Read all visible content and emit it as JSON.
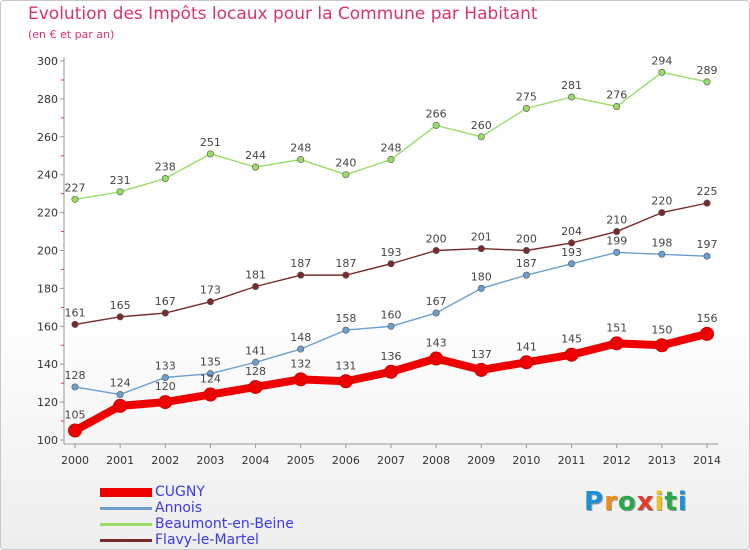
{
  "title": "Evolution des Impôts locaux pour la Commune par Habitant",
  "subtitle": "(en € et par an)",
  "chart_data": {
    "type": "line",
    "title": "Evolution des Impôts locaux pour la Commune par Habitant",
    "subtitle": "(en € et par an)",
    "xlabel": "",
    "ylabel": "",
    "ylim": [
      100,
      300
    ],
    "yticks": [
      100,
      120,
      140,
      160,
      180,
      200,
      220,
      240,
      260,
      280,
      300
    ],
    "grid": false,
    "legend_position": "bottom",
    "x": [
      "2000",
      "2001",
      "2002",
      "2003",
      "2004",
      "2005",
      "2006",
      "2007",
      "2008",
      "2009",
      "2010",
      "2011",
      "2012",
      "2013",
      "2014"
    ],
    "series": [
      {
        "name": "CUGNY",
        "color": "#ee0000",
        "values": [
          105,
          118,
          120,
          124,
          128,
          132,
          131,
          136,
          143,
          137,
          141,
          145,
          151,
          150,
          156
        ],
        "labels": [
          "105",
          "",
          "120",
          "124",
          "128",
          "132",
          "131",
          "136",
          "143",
          "137",
          "141",
          "145",
          "151",
          "150",
          "156"
        ]
      },
      {
        "name": "Annois",
        "color": "#6a9fd0",
        "values": [
          128,
          124,
          133,
          135,
          141,
          148,
          158,
          160,
          167,
          180,
          187,
          193,
          199,
          198,
          197
        ],
        "labels": [
          "128",
          "124",
          "133",
          "135",
          "141",
          "148",
          "158",
          "160",
          "167",
          "180",
          "187",
          "193",
          "199",
          "198",
          "197"
        ]
      },
      {
        "name": "Beaumont-en-Beine",
        "color": "#99dd66",
        "values": [
          227,
          231,
          238,
          251,
          244,
          248,
          240,
          248,
          266,
          260,
          275,
          281,
          276,
          294,
          289
        ],
        "labels": [
          "227",
          "231",
          "238",
          "251",
          "244",
          "248",
          "240",
          "248",
          "266",
          "260",
          "275",
          "281",
          "276",
          "294",
          "289"
        ]
      },
      {
        "name": "Flavy-le-Martel",
        "color": "#7a2a2a",
        "values": [
          161,
          165,
          167,
          173,
          181,
          187,
          187,
          193,
          200,
          201,
          200,
          204,
          210,
          220,
          225
        ],
        "labels": [
          "161",
          "165",
          "167",
          "173",
          "181",
          "187",
          "187",
          "193",
          "200",
          "201",
          "200",
          "204",
          "210",
          "220",
          "225"
        ]
      }
    ]
  },
  "legend": [
    {
      "label": "CUGNY",
      "color": "#ee0000"
    },
    {
      "label": "Annois",
      "color": "#6a9fd0"
    },
    {
      "label": "Beaumont-en-Beine",
      "color": "#99dd66"
    },
    {
      "label": "Flavy-le-Martel",
      "color": "#7a2a2a"
    }
  ],
  "logo": {
    "text": "Proxiti",
    "letters": [
      "P",
      "r",
      "o",
      "x",
      "i",
      "t",
      "i"
    ],
    "colors": [
      "#1e90d8",
      "#f08c1a",
      "#2aa84a",
      "#e23b2a",
      "#f2c21b",
      "#2aa84a",
      "#1e90d8"
    ]
  }
}
